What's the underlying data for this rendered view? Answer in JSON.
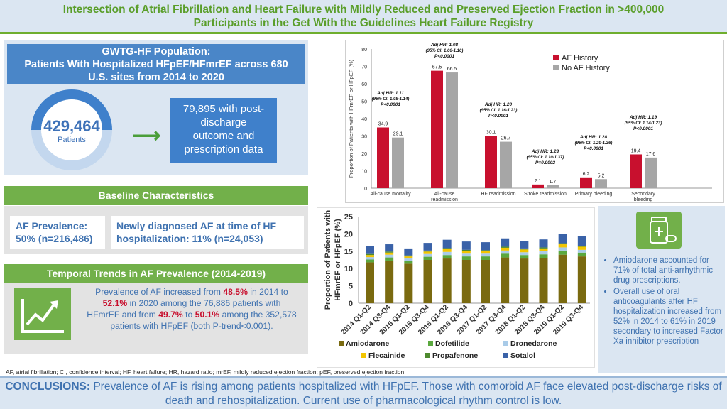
{
  "banner": {
    "line1": "Intersection of Atrial Fibrillation and Heart Failure with Mildly Reduced and Preserved Ejection Fraction in >400,000",
    "line2": "Participants in the Get With the Guidelines Heart Failure Registry"
  },
  "population": {
    "title_l1": "GWTG-HF Population:",
    "title_l2": "Patients With Hospitalized HFpEF/HFmrEF across 680",
    "title_l3": "U.S. sites from 2014 to 2020",
    "count": "429,464",
    "count_label": "Patients",
    "post_l1": "79,895 with post-",
    "post_l2": "discharge",
    "post_l3": "outcome and",
    "post_l4": "prescription data"
  },
  "baseline": {
    "title": "Baseline Characteristics",
    "af_prev_l1": "AF Prevalence:",
    "af_prev_l2": "50% (n=216,486)",
    "new_af_l1": "Newly diagnosed AF at time of HF",
    "new_af_l2": "hospitalization: 11% (n=24,053)"
  },
  "trends": {
    "title": "Temporal Trends in AF Prevalence (2014-2019)",
    "t1": "Prevalence of AF increased from ",
    "t2": "48.5%",
    "t3": " in 2014 to ",
    "t4": "52.1%",
    "t5": " in 2020 among the 76,886 patients with HFmrEF and from ",
    "t6": "49.7%",
    "t7": " to ",
    "t8": "50.1%",
    "t9": " among the 352,578 patients with HFpEF (both P-trend<0.001)."
  },
  "side": {
    "b1": "Amiodarone accounted for 71% of total anti-arrhythmic drug prescriptions.",
    "b2": "Overall use of oral anticoagulants after HF hospitalization increased from 52% in 2014 to 61% in 2019 secondary to increased Factor Xa inhibitor prescription"
  },
  "footnote": "AF, atrial fibrillation; CI, confidence interval; HF, heart failure; HR, hazard ratio; mrEF, mildly reduced ejection fraction; pEF, preserved ejection fraction",
  "conclusions": {
    "label": "CONCLUSIONS:",
    "text": " Prevalence of AF is rising among patients hospitalized with HFpEF. Those with comorbid AF face elevated post-discharge risks of death and rehospitalization. Current use of pharmacological rhythm control is low."
  },
  "colors": {
    "af": "#c8102e",
    "noaf": "#a6a6a6",
    "amiodarone": "#7a6a10",
    "dofetilide": "#5aa83e",
    "dronedarone": "#a9cbe8",
    "flecainide": "#f2c500",
    "propafenone": "#4e8a2e",
    "sotalol": "#3a62a8"
  },
  "chart_data": [
    {
      "type": "bar",
      "title": "",
      "ylabel": "Proportion of Patients with HFmrEF or HFpEF (%)",
      "xlabel": "",
      "ylim": [
        0,
        80
      ],
      "yticks": [
        0,
        10,
        20,
        30,
        40,
        50,
        60,
        70,
        80
      ],
      "categories": [
        "All-cause mortality",
        "All-cause readmission",
        "HF readmission",
        "Stroke readmission",
        "Primary bleeding",
        "Secondary bleeding"
      ],
      "series": [
        {
          "name": "AF History",
          "values": [
            34.9,
            67.5,
            30.1,
            2.1,
            6.2,
            19.4
          ]
        },
        {
          "name": "No AF History",
          "values": [
            29.1,
            66.5,
            26.7,
            1.7,
            5.2,
            17.6
          ]
        }
      ],
      "value_labels_af": [
        "34.9",
        "67.5",
        "30.1",
        "2.1",
        "6.2",
        "19.4"
      ],
      "value_labels_noaf": [
        "29.1",
        "66.5",
        "26.7",
        "1.7",
        "5.2",
        "17.6"
      ],
      "annotations": [
        {
          "l1": "Adj HR: 1.11",
          "l2": "(95% CI: 1.08-1.14)",
          "l3": "P<0.0001"
        },
        {
          "l1": "Adj HR: 1.08",
          "l2": "(95% CI: 1.06-1.10)",
          "l3": "P<0.0001"
        },
        {
          "l1": "Adj HR: 1.20",
          "l2": "(95% CI: 1.16-1.23)",
          "l3": "P<0.0001"
        },
        {
          "l1": "Adj HR: 1.23",
          "l2": "(95% CI: 1.10-1.37)",
          "l3": "P=0.0002"
        },
        {
          "l1": "Adj HR: 1.28",
          "l2": "(95% CI: 1.20-1.36)",
          "l3": "P<0.0001"
        },
        {
          "l1": "Adj HR: 1.19",
          "l2": "(95% CI: 1.14-1.23)",
          "l3": "P<0.0001"
        }
      ],
      "legend_position": "top-right",
      "grid": false
    },
    {
      "type": "bar",
      "stacked": true,
      "title": "",
      "ylabel": "Proportion of Patients with HFmrEF or HFpEF (%)",
      "xlabel": "",
      "ylim": [
        0,
        25
      ],
      "yticks": [
        0,
        5,
        10,
        15,
        20,
        25
      ],
      "categories": [
        "2014 Q1-Q2",
        "2014 Q3-Q4",
        "2015 Q1-Q2",
        "2015 Q3-Q4",
        "2016 Q1-Q2",
        "2016 Q3-Q4",
        "2017 Q1-Q2",
        "2017 Q3-Q4",
        "2018 Q1-Q2",
        "2018 Q3-Q4",
        "2019 Q1-Q2",
        "2019 Q3-Q4"
      ],
      "series": [
        {
          "name": "Amiodarone",
          "values": [
            11.8,
            12.3,
            11.4,
            12.5,
            12.9,
            12.5,
            12.5,
            13.2,
            12.9,
            13.0,
            14.0,
            13.5
          ]
        },
        {
          "name": "Dofetilide",
          "values": [
            0.8,
            0.9,
            0.8,
            0.9,
            1.0,
            1.0,
            1.0,
            1.1,
            1.0,
            1.1,
            1.2,
            1.1
          ]
        },
        {
          "name": "Dronedarone",
          "values": [
            0.7,
            0.8,
            0.7,
            0.8,
            0.9,
            0.8,
            0.8,
            0.9,
            0.8,
            0.9,
            0.9,
            0.8
          ]
        },
        {
          "name": "Flecainide",
          "values": [
            0.6,
            0.6,
            0.6,
            0.7,
            0.8,
            0.8,
            0.7,
            0.8,
            0.8,
            0.8,
            0.9,
            0.9
          ]
        },
        {
          "name": "Propafenone",
          "values": [
            0.3,
            0.3,
            0.3,
            0.3,
            0.3,
            0.3,
            0.3,
            0.3,
            0.3,
            0.3,
            0.3,
            0.3
          ]
        },
        {
          "name": "Sotalol",
          "values": [
            2.2,
            2.1,
            2.0,
            2.2,
            2.4,
            2.4,
            2.3,
            2.4,
            2.1,
            2.3,
            2.7,
            2.7
          ]
        }
      ],
      "legend_position": "bottom",
      "grid": false
    }
  ]
}
